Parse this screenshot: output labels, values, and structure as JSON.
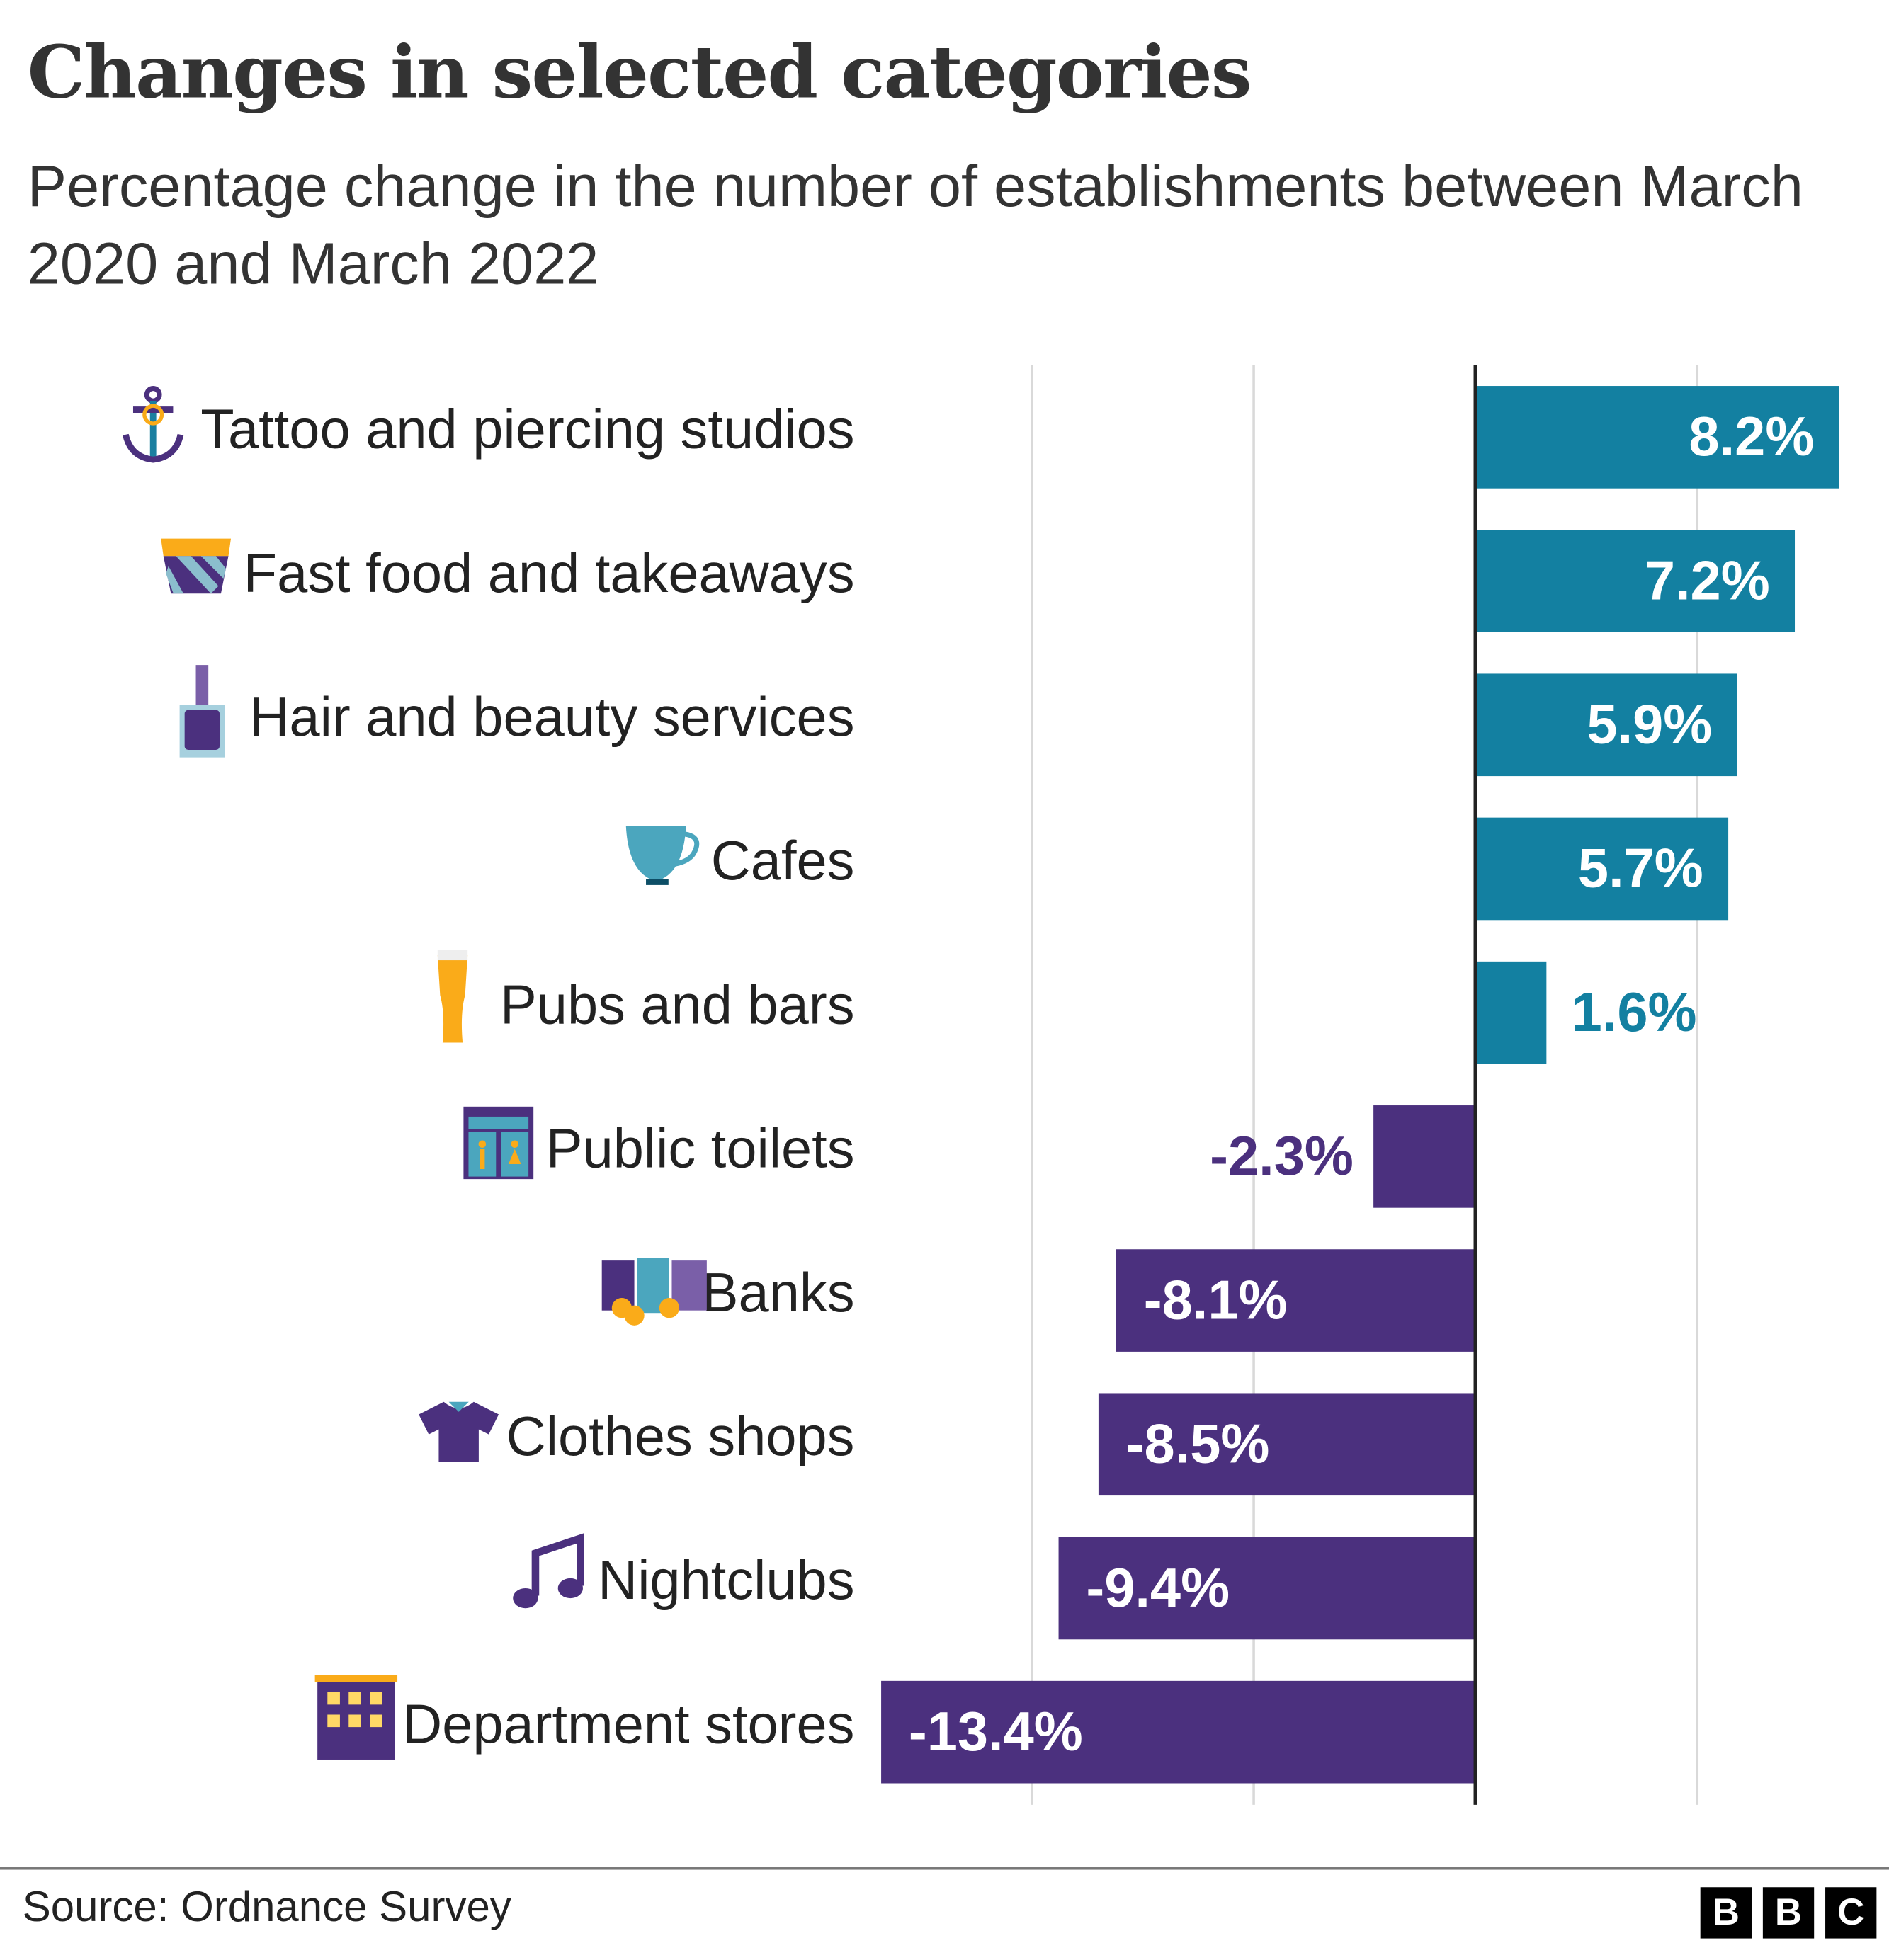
{
  "title": "Changes in selected categories",
  "subtitle": "Percentage change in the number of establishments between March 2020 and March 2022",
  "source": "Source: Ordnance Survey",
  "logo": "BBC",
  "colors": {
    "positive": "#1380A1",
    "negative": "#4B307E",
    "text": "#222222",
    "grid": "#D9D9D9"
  },
  "chart_data": {
    "type": "bar",
    "orientation": "horizontal",
    "categories": [
      "Tattoo and piercing studios",
      "Fast food and takeaways",
      "Hair and beauty services",
      "Cafes",
      "Pubs and bars",
      "Public toilets",
      "Banks",
      "Clothes shops",
      "Nightclubs",
      "Department stores"
    ],
    "icons": [
      "anchor-icon",
      "fries-icon",
      "nail-polish-icon",
      "cup-icon",
      "beer-glass-icon",
      "toilet-icon",
      "bank-notes-icon",
      "tshirt-icon",
      "music-note-icon",
      "building-icon"
    ],
    "values": [
      8.2,
      7.2,
      5.9,
      5.7,
      1.6,
      -2.3,
      -8.1,
      -8.5,
      -9.4,
      -13.4
    ],
    "data_labels": [
      "8.2%",
      "7.2%",
      "5.9%",
      "5.7%",
      "1.6%",
      "-2.3%",
      "-8.1%",
      "-8.5%",
      "-9.4%",
      "-13.4%"
    ],
    "xlim": [
      -13.4,
      9
    ],
    "gridlines": [
      -10,
      -5,
      5
    ],
    "grid": true,
    "xlabel": "",
    "ylabel": ""
  }
}
